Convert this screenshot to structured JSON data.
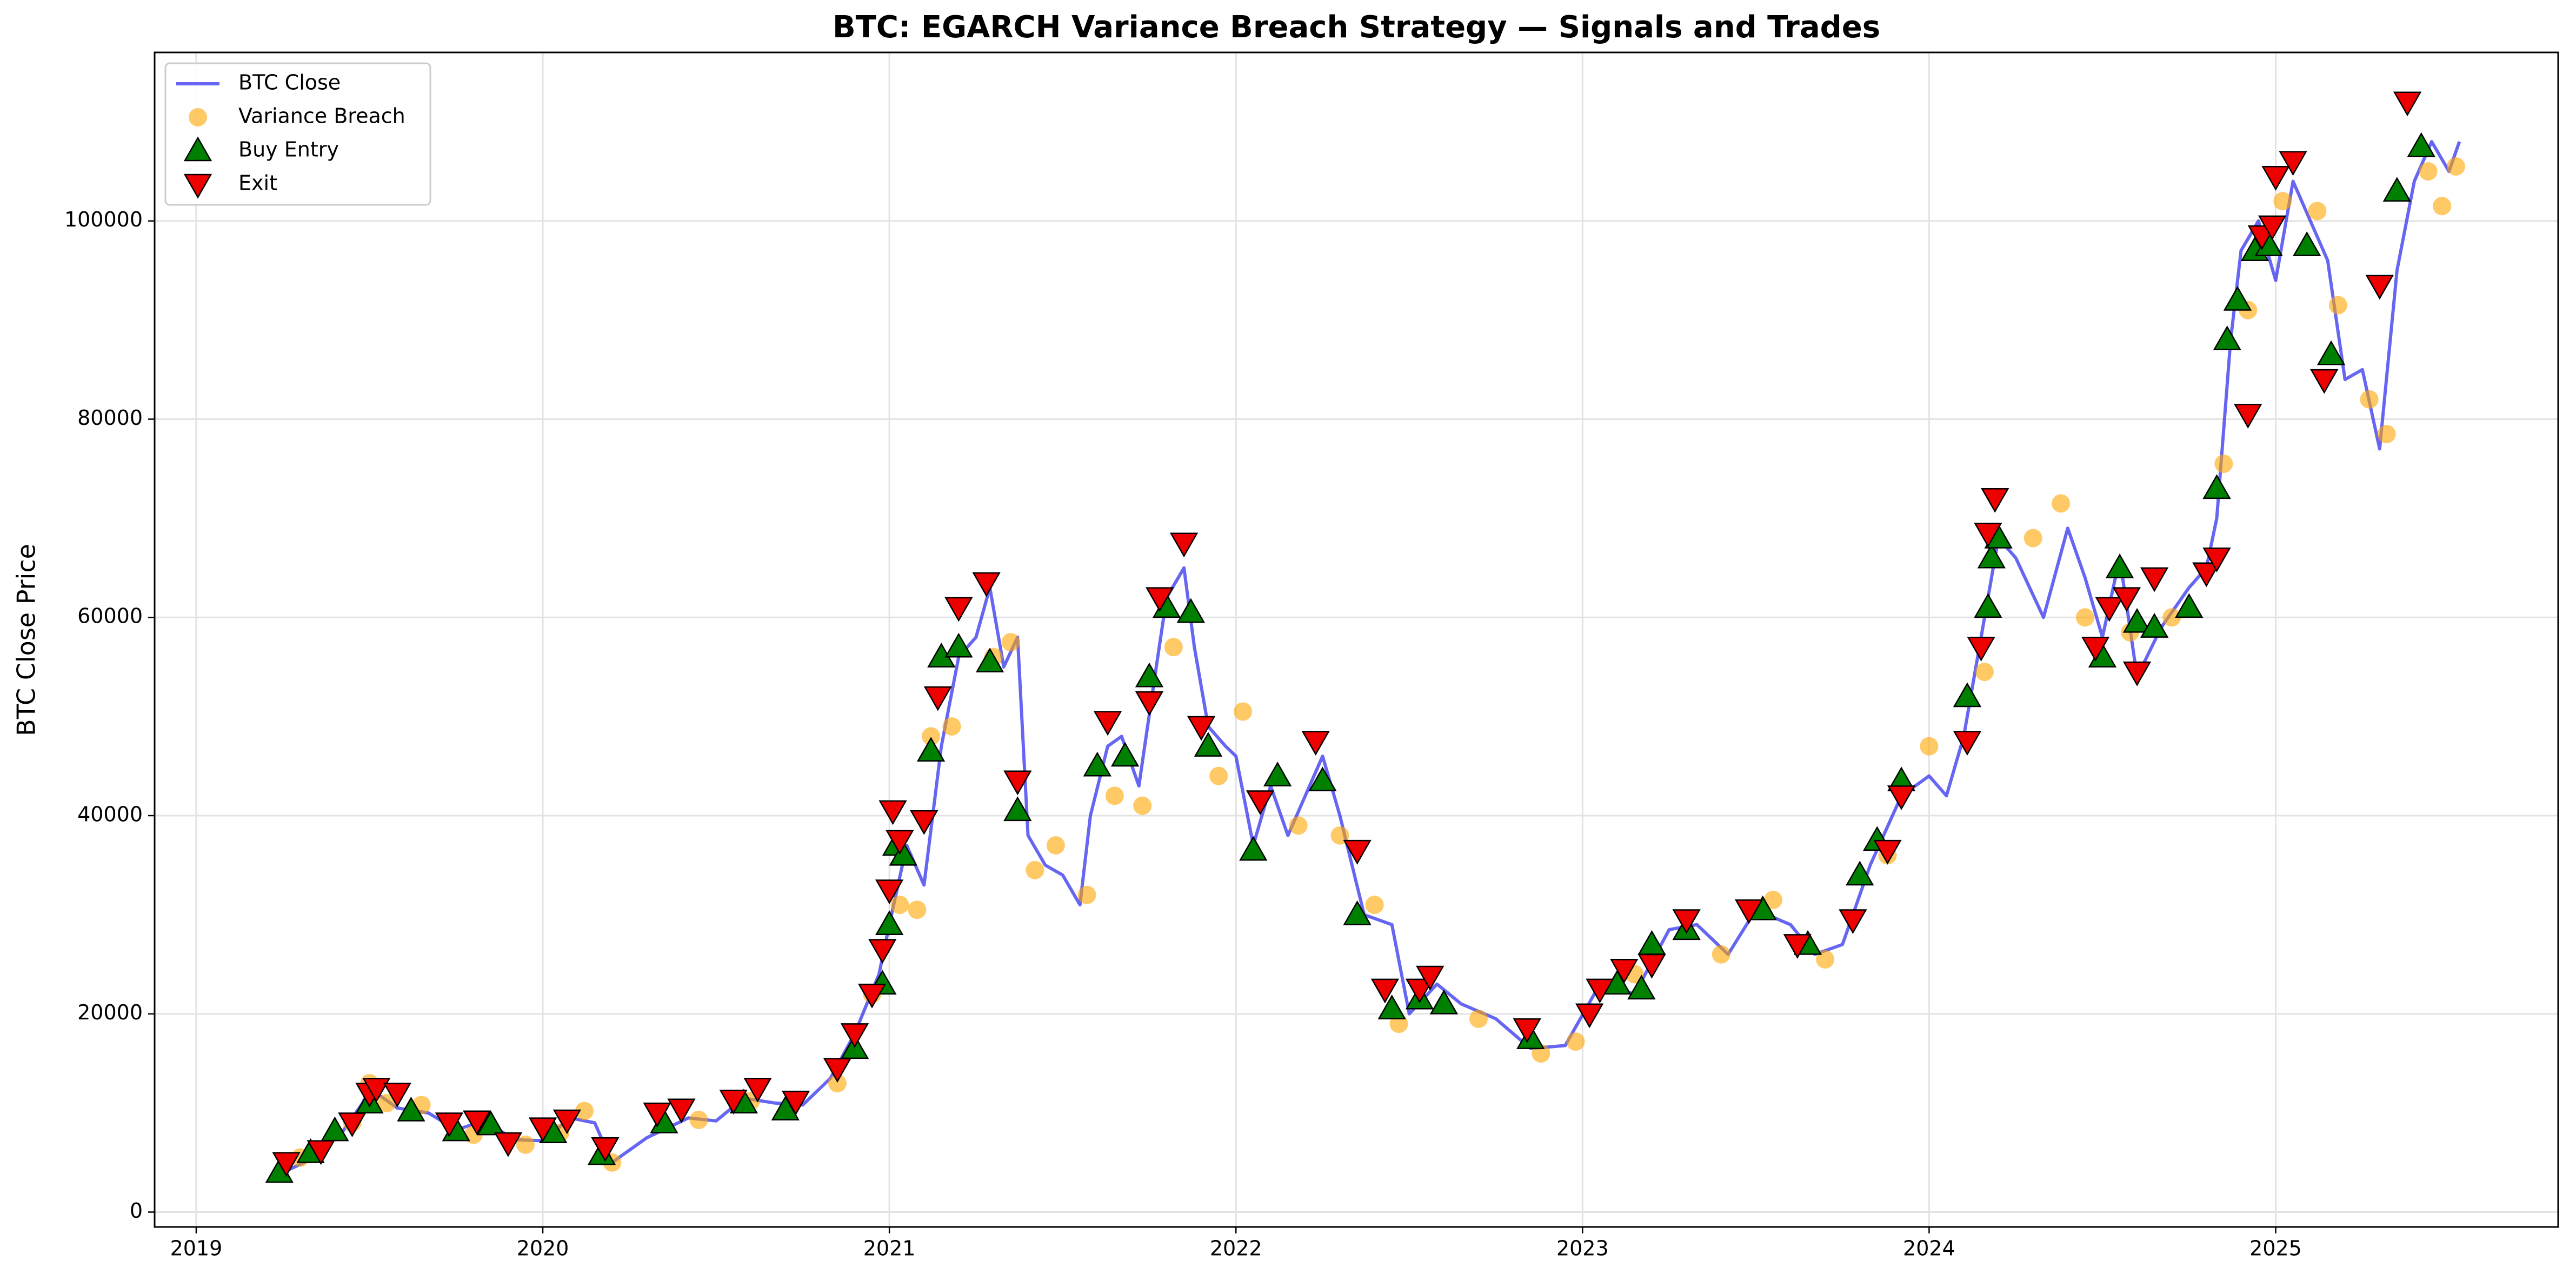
{
  "chart_data": {
    "type": "mixed",
    "title": "BTC: EGARCH Variance Breach Strategy — Signals and Trades",
    "y_label": "BTC Close Price",
    "xlim": [
      2018.88,
      2025.815
    ],
    "xticks": [
      2019,
      2020,
      2021,
      2022,
      2023,
      2024,
      2025
    ],
    "ylim": [
      -1500,
      117000
    ],
    "yticks": [
      0,
      20000,
      40000,
      60000,
      80000,
      100000
    ],
    "grid": true,
    "legend": "upper left",
    "series": [
      {
        "name": "BTC Close",
        "marker": "line",
        "color": "#3333ee",
        "x": [
          2019.25,
          2019.33,
          2019.42,
          2019.48,
          2019.5,
          2019.58,
          2019.67,
          2019.75,
          2019.83,
          2019.92,
          2020.0,
          2020.08,
          2020.15,
          2020.2,
          2020.3,
          2020.42,
          2020.5,
          2020.58,
          2020.67,
          2020.75,
          2020.83,
          2020.9,
          2020.97,
          2021.0,
          2021.05,
          2021.1,
          2021.15,
          2021.2,
          2021.25,
          2021.29,
          2021.33,
          2021.37,
          2021.4,
          2021.45,
          2021.5,
          2021.55,
          2021.58,
          2021.63,
          2021.67,
          2021.72,
          2021.77,
          2021.8,
          2021.85,
          2021.88,
          2021.92,
          2021.97,
          2022.0,
          2022.05,
          2022.1,
          2022.15,
          2022.2,
          2022.25,
          2022.3,
          2022.37,
          2022.45,
          2022.5,
          2022.58,
          2022.65,
          2022.75,
          2022.85,
          2022.95,
          2023.05,
          2023.15,
          2023.25,
          2023.33,
          2023.42,
          2023.5,
          2023.6,
          2023.67,
          2023.75,
          2023.83,
          2023.92,
          2024.0,
          2024.05,
          2024.1,
          2024.17,
          2024.2,
          2024.25,
          2024.33,
          2024.4,
          2024.45,
          2024.5,
          2024.55,
          2024.6,
          2024.67,
          2024.75,
          2024.8,
          2024.83,
          2024.87,
          2024.9,
          2024.95,
          2025.0,
          2025.05,
          2025.1,
          2025.15,
          2025.2,
          2025.25,
          2025.3,
          2025.35,
          2025.4,
          2025.45,
          2025.5,
          2025.53
        ],
        "values": [
          4000,
          5300,
          8000,
          11000,
          12500,
          10500,
          10000,
          8300,
          9200,
          7300,
          7200,
          9500,
          9000,
          5000,
          7500,
          9500,
          9200,
          11500,
          11000,
          10800,
          13500,
          18000,
          24000,
          29000,
          37000,
          33000,
          47000,
          56000,
          58000,
          63000,
          55000,
          58000,
          38000,
          35000,
          34000,
          31000,
          40000,
          47000,
          48000,
          43000,
          55000,
          62000,
          65000,
          57000,
          49000,
          47000,
          46000,
          37000,
          43000,
          38000,
          42000,
          46000,
          40000,
          30000,
          29000,
          20000,
          23000,
          21000,
          19500,
          16500,
          16800,
          23000,
          22000,
          28500,
          29000,
          26000,
          30500,
          29000,
          26000,
          27000,
          35000,
          42000,
          44000,
          42000,
          48000,
          62000,
          68000,
          66000,
          60000,
          69000,
          64000,
          58000,
          66000,
          54000,
          59000,
          63000,
          65000,
          70000,
          88000,
          97000,
          100000,
          94000,
          104000,
          100000,
          96000,
          84000,
          85000,
          77000,
          95000,
          104000,
          108000,
          105000,
          108000
        ]
      },
      {
        "name": "Variance Breach",
        "marker": "circle",
        "color": "#ffa500",
        "x": [
          2019.3,
          2019.45,
          2019.5,
          2019.55,
          2019.65,
          2019.8,
          2019.95,
          2020.05,
          2020.12,
          2020.2,
          2020.45,
          2020.6,
          2020.85,
          2020.95,
          2021.03,
          2021.08,
          2021.12,
          2021.18,
          2021.3,
          2021.35,
          2021.42,
          2021.48,
          2021.57,
          2021.65,
          2021.73,
          2021.82,
          2021.95,
          2022.02,
          2022.18,
          2022.3,
          2022.4,
          2022.47,
          2022.7,
          2022.88,
          2022.98,
          2023.15,
          2023.4,
          2023.55,
          2023.7,
          2023.88,
          2024.0,
          2024.16,
          2024.3,
          2024.38,
          2024.45,
          2024.58,
          2024.7,
          2024.85,
          2024.92,
          2025.02,
          2025.12,
          2025.18,
          2025.27,
          2025.32,
          2025.44,
          2025.48,
          2025.52
        ],
        "values": [
          5500,
          9000,
          13000,
          11000,
          10800,
          7800,
          6800,
          8000,
          10200,
          5000,
          9300,
          11200,
          13000,
          22000,
          31000,
          30500,
          48000,
          49000,
          56000,
          57500,
          34500,
          37000,
          32000,
          42000,
          41000,
          57000,
          44000,
          50500,
          39000,
          38000,
          31000,
          19000,
          19500,
          16000,
          17200,
          24000,
          26000,
          31500,
          25500,
          36000,
          47000,
          54500,
          68000,
          71500,
          60000,
          58500,
          60000,
          75500,
          91000,
          102000,
          101000,
          91500,
          82000,
          78500,
          105000,
          101500,
          105500
        ]
      },
      {
        "name": "Buy Entry",
        "marker": "triangle-up",
        "color": "#008000",
        "x": [
          2019.24,
          2019.33,
          2019.4,
          2019.5,
          2019.62,
          2019.75,
          2019.85,
          2020.03,
          2020.17,
          2020.35,
          2020.58,
          2020.7,
          2020.9,
          2020.98,
          2021.0,
          2021.02,
          2021.04,
          2021.12,
          2021.15,
          2021.2,
          2021.29,
          2021.37,
          2021.6,
          2021.68,
          2021.75,
          2021.8,
          2021.87,
          2021.92,
          2022.05,
          2022.12,
          2022.25,
          2022.35,
          2022.45,
          2022.53,
          2022.6,
          2022.85,
          2023.1,
          2023.17,
          2023.2,
          2023.3,
          2023.52,
          2023.65,
          2023.8,
          2023.85,
          2023.92,
          2024.11,
          2024.17,
          2024.18,
          2024.2,
          2024.5,
          2024.55,
          2024.6,
          2024.65,
          2024.75,
          2024.83,
          2024.86,
          2024.89,
          2024.94,
          2024.98,
          2025.09,
          2025.16,
          2025.35,
          2025.42
        ],
        "values": [
          4000,
          6000,
          8200,
          11000,
          10200,
          8200,
          8800,
          8000,
          5800,
          9000,
          11000,
          10300,
          16500,
          23000,
          29000,
          37000,
          36000,
          46500,
          56000,
          57000,
          55500,
          40500,
          45000,
          46000,
          54000,
          61000,
          60500,
          47000,
          36500,
          44000,
          43500,
          30000,
          20500,
          21500,
          21000,
          17500,
          23000,
          22500,
          27000,
          28500,
          30500,
          27000,
          34000,
          37500,
          43500,
          52000,
          61000,
          66000,
          68000,
          56000,
          65000,
          59500,
          59000,
          61000,
          73000,
          88000,
          92000,
          97000,
          97500,
          97500,
          86500,
          103000,
          107500
        ]
      },
      {
        "name": "Exit",
        "marker": "triangle-down",
        "color": "#ee0000",
        "x": [
          2019.26,
          2019.36,
          2019.45,
          2019.5,
          2019.52,
          2019.58,
          2019.73,
          2019.81,
          2019.9,
          2020.0,
          2020.07,
          2020.18,
          2020.33,
          2020.4,
          2020.55,
          2020.62,
          2020.73,
          2020.85,
          2020.9,
          2020.95,
          2020.98,
          2021.0,
          2021.01,
          2021.03,
          2021.1,
          2021.14,
          2021.2,
          2021.28,
          2021.37,
          2021.63,
          2021.75,
          2021.78,
          2021.85,
          2021.9,
          2022.07,
          2022.23,
          2022.35,
          2022.43,
          2022.53,
          2022.56,
          2022.84,
          2023.02,
          2023.05,
          2023.12,
          2023.2,
          2023.3,
          2023.48,
          2023.62,
          2023.78,
          2023.88,
          2023.92,
          2024.11,
          2024.15,
          2024.17,
          2024.19,
          2024.48,
          2024.52,
          2024.57,
          2024.6,
          2024.65,
          2024.8,
          2024.83,
          2024.92,
          2024.96,
          2024.99,
          2025.0,
          2025.05,
          2025.14,
          2025.3,
          2025.38
        ],
        "values": [
          5000,
          6200,
          9000,
          12000,
          12500,
          12000,
          9000,
          9200,
          7000,
          8500,
          9300,
          6500,
          10000,
          10400,
          11300,
          12500,
          11200,
          14500,
          18000,
          22000,
          26500,
          32500,
          40500,
          37500,
          39500,
          52000,
          61000,
          63500,
          43500,
          49500,
          51500,
          62000,
          67500,
          49000,
          41500,
          47500,
          36500,
          22500,
          22500,
          23800,
          18500,
          20000,
          22500,
          24500,
          25000,
          29500,
          30500,
          27000,
          29500,
          36500,
          42000,
          47500,
          57000,
          68500,
          72000,
          57000,
          61000,
          62000,
          54500,
          64000,
          64500,
          66000,
          80500,
          98500,
          99500,
          104500,
          106000,
          84000,
          93500,
          112000
        ]
      }
    ]
  }
}
